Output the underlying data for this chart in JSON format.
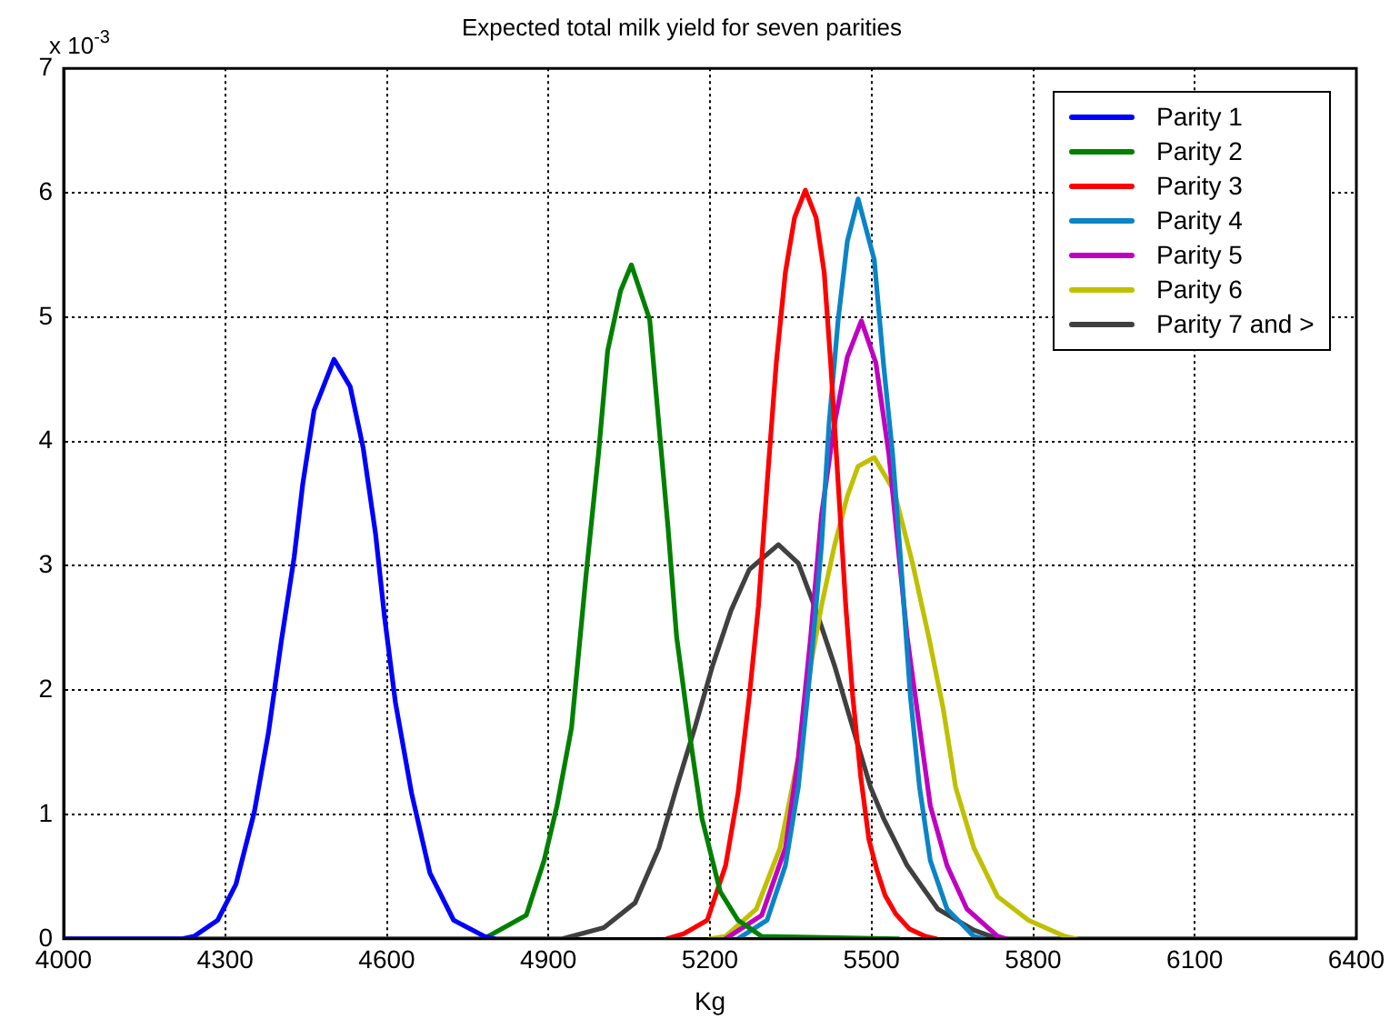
{
  "chart_data": {
    "type": "line",
    "title": "Expected total milk yield for seven parities",
    "xlabel": "Kg",
    "annotations": [
      "x 10$^{-3}$"
    ],
    "xlim": [
      4000,
      6400
    ],
    "xticks": [
      4000,
      4300,
      4600,
      4900,
      5200,
      5500,
      5800,
      6100,
      6400
    ],
    "ylim": [
      0,
      7
    ],
    "yticks": [
      0,
      1,
      2,
      3,
      4,
      5,
      6,
      7
    ],
    "grid": true,
    "legend": "top right",
    "marker": "none",
    "line_style": "solid",
    "series": [
      {
        "name": "Parity 1",
        "color": "#0000ff",
        "x": [
          4000,
          4220,
          4242,
          4286,
          4320,
          4354,
          4380,
          4404,
          4428,
          4444,
          4465,
          4502,
          4532,
          4556,
          4579,
          4596,
          4616,
          4646,
          4680,
          4724,
          4781,
          4800
        ],
        "values": [
          0,
          0,
          0.02,
          0.15,
          0.44,
          1.02,
          1.65,
          2.39,
          3.07,
          3.66,
          4.25,
          4.66,
          4.44,
          3.95,
          3.26,
          2.58,
          1.9,
          1.17,
          0.53,
          0.15,
          0.02,
          0
        ]
      },
      {
        "name": "Parity 2",
        "color": "#008000",
        "x": [
          4780,
          4859,
          4892,
          4916,
          4943,
          4970,
          4993,
          5010,
          5034,
          5054,
          5088,
          5105,
          5122,
          5138,
          5162,
          5185,
          5219,
          5252,
          5296,
          5550
        ],
        "values": [
          0,
          0.19,
          0.63,
          1.07,
          1.7,
          2.93,
          3.9,
          4.73,
          5.21,
          5.42,
          4.98,
          4.14,
          3.31,
          2.43,
          1.65,
          0.97,
          0.38,
          0.15,
          0.02,
          0
        ]
      },
      {
        "name": "Parity 3",
        "color": "#ff0000",
        "x": [
          5120,
          5151,
          5195,
          5229,
          5252,
          5273,
          5290,
          5306,
          5323,
          5340,
          5357,
          5377,
          5397,
          5412,
          5424,
          5438,
          5452,
          5465,
          5480,
          5495,
          5510,
          5525,
          5545,
          5570,
          5600,
          5620
        ],
        "values": [
          0,
          0.04,
          0.15,
          0.59,
          1.17,
          1.95,
          2.68,
          3.66,
          4.63,
          5.36,
          5.8,
          6.02,
          5.8,
          5.36,
          4.63,
          3.66,
          2.68,
          1.95,
          1.3,
          0.8,
          0.55,
          0.35,
          0.2,
          0.08,
          0.02,
          0
        ]
      },
      {
        "name": "Parity 4",
        "color": "#0b84c6",
        "x": [
          5252,
          5306,
          5340,
          5364,
          5387,
          5407,
          5421,
          5438,
          5455,
          5475,
          5505,
          5522,
          5539,
          5556,
          5572,
          5589,
          5609,
          5640,
          5690,
          5710
        ],
        "values": [
          0,
          0.15,
          0.59,
          1.22,
          2.2,
          3.16,
          4.14,
          4.98,
          5.61,
          5.95,
          5.46,
          4.63,
          3.9,
          2.93,
          1.95,
          1.22,
          0.63,
          0.24,
          0.02,
          0
        ]
      },
      {
        "name": "Parity 5",
        "color": "#c000c0",
        "x": [
          5229,
          5296,
          5340,
          5364,
          5387,
          5407,
          5431,
          5455,
          5481,
          5508,
          5532,
          5549,
          5566,
          5589,
          5609,
          5640,
          5677,
          5734,
          5750
        ],
        "values": [
          0,
          0.19,
          0.73,
          1.46,
          2.43,
          3.41,
          4.14,
          4.68,
          4.97,
          4.63,
          3.9,
          3.16,
          2.43,
          1.7,
          1.07,
          0.59,
          0.24,
          0.02,
          0
        ]
      },
      {
        "name": "Parity 6",
        "color": "#c0c000",
        "x": [
          5200,
          5229,
          5286,
          5330,
          5364,
          5387,
          5407,
          5431,
          5455,
          5475,
          5505,
          5542,
          5576,
          5606,
          5633,
          5656,
          5690,
          5734,
          5791,
          5859,
          5880
        ],
        "values": [
          0,
          0.02,
          0.24,
          0.73,
          1.46,
          2.2,
          2.68,
          3.16,
          3.56,
          3.8,
          3.87,
          3.6,
          3.02,
          2.43,
          1.85,
          1.22,
          0.73,
          0.34,
          0.15,
          0.02,
          0
        ]
      },
      {
        "name": "Parity 7 and >",
        "color": "#404040",
        "x": [
          4000,
          4926,
          5003,
          5061,
          5105,
          5138,
          5172,
          5205,
          5239,
          5273,
          5327,
          5364,
          5397,
          5431,
          5465,
          5498,
          5522,
          5566,
          5623,
          5690,
          5734,
          6400
        ],
        "values": [
          0,
          0,
          0.09,
          0.29,
          0.73,
          1.22,
          1.7,
          2.2,
          2.64,
          2.97,
          3.17,
          3.02,
          2.64,
          2.2,
          1.7,
          1.22,
          0.97,
          0.59,
          0.24,
          0.07,
          0,
          0
        ]
      }
    ]
  }
}
